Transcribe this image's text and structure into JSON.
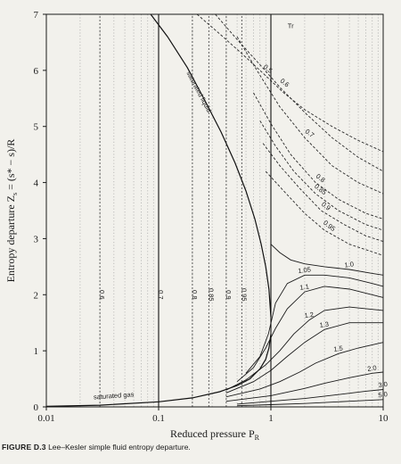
{
  "caption": {
    "label": "FIGURE D.3",
    "text": "Lee–Kesler simple fluid entropy departure."
  },
  "chart_data": {
    "type": "line",
    "title": "",
    "xlabel": "Reduced pressure  P",
    "xlabel_sub": "R",
    "ylabel": "Entropy departure  Z",
    "ylabel_sub": "s",
    "ylabel_rest": " = (s* − s)/R",
    "xscale": "log",
    "xlim": [
      0.01,
      10
    ],
    "ylim": [
      0,
      7
    ],
    "xticks": [
      {
        "v": 0.01,
        "label": "0.01"
      },
      {
        "v": 0.1,
        "label": "0.1"
      },
      {
        "v": 1,
        "label": "1"
      },
      {
        "v": 10,
        "label": "10"
      }
    ],
    "yticks": [
      "0",
      "1",
      "2",
      "3",
      "4",
      "5",
      "6",
      "7"
    ],
    "grid": "dotted vertical at minor log ticks",
    "legend": "none",
    "sat_liquid": {
      "label": "saturated liquid",
      "x": [
        0.085,
        0.12,
        0.18,
        0.26,
        0.36,
        0.48,
        0.6,
        0.72,
        0.82,
        0.9,
        0.96,
        1.0
      ],
      "y": [
        7.0,
        6.6,
        6.05,
        5.45,
        4.9,
        4.35,
        3.85,
        3.35,
        2.9,
        2.5,
        2.1,
        1.6
      ]
    },
    "sat_gas": {
      "label": "saturated gas",
      "x": [
        0.01,
        0.03,
        0.1,
        0.2,
        0.35,
        0.5,
        0.65,
        0.8,
        0.9,
        0.96,
        1.0
      ],
      "y": [
        0.01,
        0.03,
        0.09,
        0.16,
        0.27,
        0.38,
        0.5,
        0.68,
        0.85,
        1.05,
        1.3
      ]
    },
    "tr_label": "Tr",
    "iso_dashed": [
      {
        "name": "0.5",
        "x": [
          0.22,
          0.35,
          0.55,
          0.85,
          1.3,
          2.0,
          3.5,
          6,
          10
        ],
        "y": [
          7.0,
          6.65,
          6.3,
          5.95,
          5.6,
          5.3,
          5.0,
          4.75,
          4.55
        ]
      },
      {
        "name": "0.6",
        "x": [
          0.32,
          0.5,
          0.8,
          1.2,
          2.0,
          3.5,
          6,
          10
        ],
        "y": [
          7.0,
          6.55,
          6.1,
          5.7,
          5.25,
          4.8,
          4.45,
          4.2
        ]
      },
      {
        "name": "0.7",
        "x": [
          0.5,
          0.75,
          1.2,
          2.0,
          3.5,
          6,
          10
        ],
        "y": [
          6.6,
          6.0,
          5.35,
          4.8,
          4.3,
          4.0,
          3.8
        ]
      },
      {
        "name": "0.8",
        "x": [
          0.7,
          1.0,
          1.5,
          2.5,
          4,
          7,
          10
        ],
        "y": [
          5.6,
          5.05,
          4.5,
          4.0,
          3.7,
          3.45,
          3.35
        ]
      },
      {
        "name": "0.85",
        "x": [
          0.8,
          1.1,
          1.6,
          2.5,
          4,
          7,
          10
        ],
        "y": [
          5.1,
          4.65,
          4.2,
          3.8,
          3.5,
          3.25,
          3.15
        ]
      },
      {
        "name": "0.9",
        "x": [
          0.85,
          1.2,
          1.8,
          2.8,
          4.5,
          7,
          10
        ],
        "y": [
          4.7,
          4.3,
          3.9,
          3.5,
          3.25,
          3.05,
          2.95
        ]
      },
      {
        "name": "0.95",
        "x": [
          0.9,
          1.3,
          2.0,
          3.0,
          5,
          10
        ],
        "y": [
          4.2,
          3.85,
          3.45,
          3.15,
          2.9,
          2.7
        ]
      }
    ],
    "iso_solid": [
      {
        "name": "1.0",
        "x": [
          1.0,
          1.2,
          1.5,
          2.0,
          3,
          5,
          8,
          10
        ],
        "y": [
          2.9,
          2.75,
          2.62,
          2.55,
          2.5,
          2.45,
          2.38,
          2.35
        ]
      },
      {
        "name": "1.05",
        "x": [
          0.6,
          0.8,
          0.95,
          1.1,
          1.4,
          2.0,
          3,
          5,
          8,
          10
        ],
        "y": [
          0.6,
          0.9,
          1.3,
          1.85,
          2.2,
          2.35,
          2.35,
          2.3,
          2.2,
          2.15
        ]
      },
      {
        "name": "1.1",
        "x": [
          0.5,
          0.7,
          0.9,
          1.1,
          1.4,
          2.0,
          3,
          5,
          10
        ],
        "y": [
          0.45,
          0.7,
          1.05,
          1.4,
          1.75,
          2.05,
          2.15,
          2.1,
          1.95
        ]
      },
      {
        "name": "1.2",
        "x": [
          0.4,
          0.6,
          0.9,
          1.2,
          1.6,
          2.2,
          3,
          5,
          10
        ],
        "y": [
          0.3,
          0.48,
          0.75,
          1.0,
          1.3,
          1.55,
          1.72,
          1.78,
          1.72
        ]
      },
      {
        "name": "1.3",
        "x": [
          0.4,
          0.7,
          1.0,
          1.4,
          2.0,
          3,
          5,
          10
        ],
        "y": [
          0.25,
          0.45,
          0.65,
          0.9,
          1.15,
          1.38,
          1.5,
          1.5
        ]
      },
      {
        "name": "1.5",
        "x": [
          0.4,
          0.8,
          1.2,
          1.8,
          2.5,
          4,
          6,
          10
        ],
        "y": [
          0.18,
          0.32,
          0.45,
          0.62,
          0.78,
          0.95,
          1.05,
          1.15
        ]
      },
      {
        "name": "2.0",
        "x": [
          0.4,
          1.0,
          2,
          3,
          5,
          8,
          10
        ],
        "y": [
          0.1,
          0.2,
          0.33,
          0.42,
          0.52,
          0.6,
          0.62
        ]
      },
      {
        "name": "3.0",
        "x": [
          0.5,
          1.0,
          2,
          4,
          7,
          10
        ],
        "y": [
          0.05,
          0.1,
          0.15,
          0.22,
          0.28,
          0.31
        ]
      },
      {
        "name": "5.0",
        "x": [
          0.5,
          1.0,
          2,
          5,
          10
        ],
        "y": [
          0.02,
          0.04,
          0.06,
          0.1,
          0.13
        ]
      }
    ],
    "iso_subcritical": [
      {
        "name": "0.6",
        "x": [
          0.03,
          0.03
        ],
        "y": [
          0,
          7
        ]
      },
      {
        "name": "0.7",
        "x": [
          0.1,
          0.1
        ],
        "y": [
          0,
          7
        ]
      },
      {
        "name": "0.8",
        "x": [
          0.2,
          0.2
        ],
        "y": [
          0,
          7
        ]
      },
      {
        "name": "0.85",
        "x": [
          0.28,
          0.28
        ],
        "y": [
          0,
          7
        ]
      },
      {
        "name": "0.9",
        "x": [
          0.4,
          0.4
        ],
        "y": [
          0,
          7
        ]
      },
      {
        "name": "0.95",
        "x": [
          0.55,
          0.55
        ],
        "y": [
          0,
          7
        ]
      }
    ]
  }
}
